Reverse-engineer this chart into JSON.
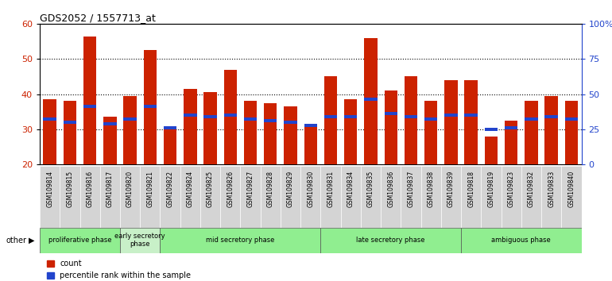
{
  "title": "GDS2052 / 1557713_at",
  "samples": [
    "GSM109814",
    "GSM109815",
    "GSM109816",
    "GSM109817",
    "GSM109820",
    "GSM109821",
    "GSM109822",
    "GSM109824",
    "GSM109825",
    "GSM109826",
    "GSM109827",
    "GSM109828",
    "GSM109829",
    "GSM109830",
    "GSM109831",
    "GSM109834",
    "GSM109835",
    "GSM109836",
    "GSM109837",
    "GSM109838",
    "GSM109839",
    "GSM109818",
    "GSM109819",
    "GSM109823",
    "GSM109832",
    "GSM109833",
    "GSM109840"
  ],
  "red_values": [
    38.5,
    38.0,
    56.5,
    33.5,
    39.5,
    52.5,
    30.5,
    41.5,
    40.5,
    47.0,
    38.0,
    37.5,
    36.5,
    31.5,
    45.0,
    38.5,
    56.0,
    41.0,
    45.0,
    38.0,
    44.0,
    44.0,
    28.0,
    32.5,
    38.0,
    39.5,
    38.0
  ],
  "blue_values": [
    33.0,
    32.0,
    36.5,
    31.5,
    33.0,
    36.5,
    30.5,
    34.0,
    33.5,
    34.0,
    33.0,
    32.5,
    32.0,
    31.0,
    33.5,
    33.5,
    38.5,
    34.5,
    33.5,
    33.0,
    34.0,
    34.0,
    30.0,
    30.5,
    33.0,
    33.5,
    33.0
  ],
  "phases": [
    {
      "label": "proliferative phase",
      "start": 0,
      "end": 4,
      "color": "#90ee90"
    },
    {
      "label": "early secretory\nphase",
      "start": 4,
      "end": 6,
      "color": "#c8f0c8"
    },
    {
      "label": "mid secretory phase",
      "start": 6,
      "end": 14,
      "color": "#90ee90"
    },
    {
      "label": "late secretory phase",
      "start": 14,
      "end": 21,
      "color": "#90ee90"
    },
    {
      "label": "ambiguous phase",
      "start": 21,
      "end": 27,
      "color": "#90ee90"
    }
  ],
  "ymin": 20,
  "ymax": 60,
  "yticks": [
    20,
    30,
    40,
    50,
    60
  ],
  "right_yticks": [
    0,
    25,
    50,
    75,
    100
  ],
  "right_yticklabels": [
    "0",
    "25",
    "50",
    "75",
    "100%"
  ],
  "bar_color": "#cc2200",
  "blue_color": "#2244cc",
  "title_color": "#333333",
  "axis_label_color": "#cc2200",
  "right_axis_color": "#2244cc"
}
